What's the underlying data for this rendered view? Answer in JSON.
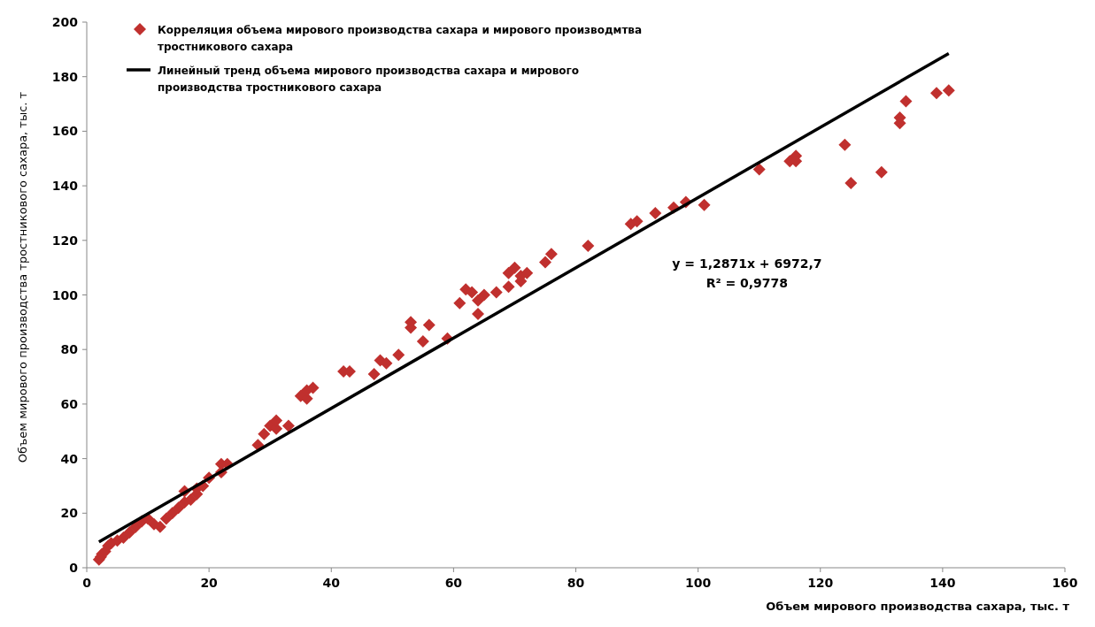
{
  "chart_data": {
    "type": "scatter",
    "xlabel": "Объем мирового производства сахара, тыс. т",
    "ylabel": "Объем мирового производства тростникового сахара, тыс. т",
    "xlim": [
      0,
      160
    ],
    "xticks": [
      0,
      20,
      40,
      60,
      80,
      100,
      120,
      140,
      160
    ],
    "ylim": [
      0,
      200
    ],
    "yticks": [
      0,
      20,
      40,
      60,
      80,
      100,
      120,
      140,
      160,
      180,
      200
    ],
    "grid": false,
    "legend": "top left",
    "annotations": [
      "y = 1,2871x + 6972,7",
      "R² = 0,9778"
    ],
    "series": [
      {
        "name": "Корреляция объема мирового производства сахара и мирового производмтва тростникового сахара",
        "color": "#c0302e",
        "marker": "diamond",
        "x": [
          2,
          2.3,
          2.5,
          3,
          3.5,
          4,
          5,
          6,
          7,
          8,
          9,
          10,
          11,
          12,
          13,
          14,
          15,
          16,
          16,
          17,
          18,
          18,
          19,
          20,
          22,
          22,
          23,
          28,
          29,
          30,
          31,
          31,
          33,
          35,
          36,
          36,
          37,
          42,
          43,
          47,
          48,
          49,
          51,
          53,
          53,
          55,
          56,
          59,
          61,
          62,
          63,
          64,
          64,
          65,
          67,
          69,
          69,
          70,
          71,
          71,
          72,
          75,
          76,
          82,
          89,
          90,
          93,
          96,
          98,
          101,
          110,
          115,
          116,
          116,
          124,
          125,
          130,
          133,
          133,
          134,
          139,
          141
        ],
        "values": [
          3,
          4,
          5,
          6,
          8,
          9,
          10,
          11,
          13,
          15,
          17,
          18,
          16,
          15,
          18,
          20,
          22,
          24,
          28,
          25,
          27,
          29,
          30,
          33,
          35,
          38,
          38,
          45,
          49,
          52,
          51,
          54,
          52,
          63,
          62,
          65,
          66,
          72,
          72,
          71,
          76,
          75,
          78,
          88,
          90,
          83,
          89,
          84,
          97,
          102,
          101,
          93,
          98,
          100,
          101,
          103,
          108,
          110,
          105,
          107,
          108,
          112,
          115,
          118,
          126,
          127,
          130,
          132,
          134,
          133,
          146,
          149,
          151,
          149,
          155,
          141,
          145,
          165,
          163,
          171,
          174,
          175
        ]
      },
      {
        "name": "Линейный тренд объема мирового производства сахара и мирового производства тростникового сахара",
        "type": "line",
        "color": "#000000",
        "line_style": "solid",
        "marker": "none",
        "x": [
          2,
          141
        ],
        "values": [
          9.5,
          188.5
        ]
      }
    ]
  }
}
